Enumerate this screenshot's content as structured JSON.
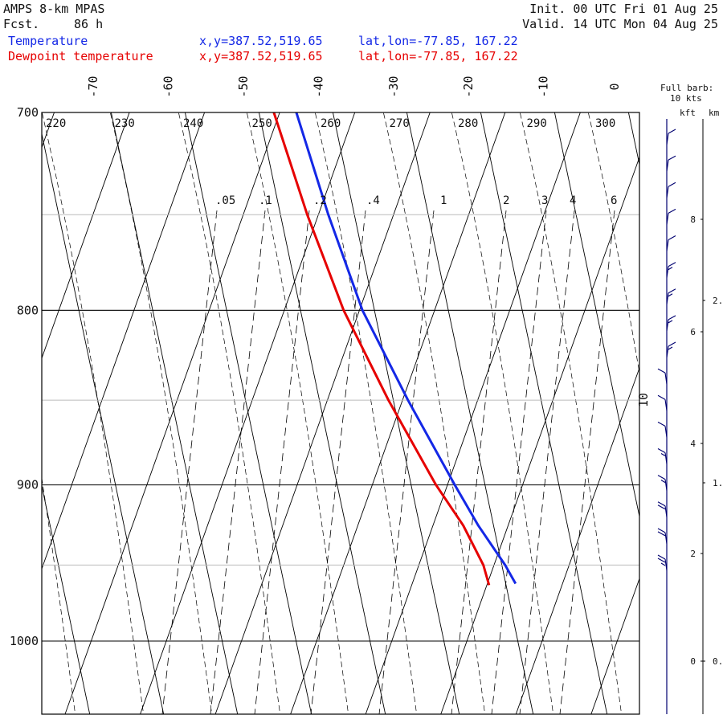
{
  "header": {
    "model": "AMPS 8-km MPAS",
    "fcst_label": "Fcst.",
    "fcst_value": "86 h",
    "init": "Init. 00 UTC Fri 01 Aug 25",
    "valid": "Valid. 14 UTC Mon 04 Aug 25"
  },
  "legend": [
    {
      "label": "Temperature",
      "xy": "x,y=387.52,519.65",
      "latlon": "lat,lon=-77.85, 167.22",
      "color": "#1428e6"
    },
    {
      "label": "Dewpoint temperature",
      "xy": "x,y=387.52,519.65",
      "latlon": "lat,lon=-77.85, 167.22",
      "color": "#e60000"
    }
  ],
  "chart_data": {
    "type": "line",
    "diagram": "skew-T log-P",
    "pressure_axis": {
      "range_hpa": [
        1040,
        700
      ],
      "ticks": [
        700,
        800,
        900,
        1000
      ],
      "log_scale": true
    },
    "temperature_axis": {
      "unit": "°C",
      "ticks": [
        -70,
        -60,
        -50,
        -40,
        -30,
        -20,
        -10,
        0
      ]
    },
    "isentrope_labels": [
      "220",
      "230",
      "240",
      "250",
      "260",
      "270",
      "280",
      "290",
      "300"
    ],
    "mixing_ratio_labels": [
      ".05",
      ".1",
      ".2",
      ".4",
      "1",
      "2",
      "3",
      "4",
      "6"
    ],
    "isobars_hpa": [
      700,
      800,
      900,
      1000
    ],
    "thin_isobars_hpa": [
      750,
      850,
      950
    ],
    "series": [
      {
        "name": "Temperature",
        "color": "#1428e6",
        "points": [
          {
            "p": 700,
            "t": -17.6
          },
          {
            "p": 750,
            "t": -18.2
          },
          {
            "p": 800,
            "t": -18.2
          },
          {
            "p": 850,
            "t": -16.4
          },
          {
            "p": 900,
            "t": -14.2
          },
          {
            "p": 925,
            "t": -13.0
          },
          {
            "p": 950,
            "t": -11.3
          },
          {
            "p": 962,
            "t": -10.8
          }
        ]
      },
      {
        "name": "Dewpoint temperature",
        "color": "#e60000",
        "points": [
          {
            "p": 700,
            "t": -20.6
          },
          {
            "p": 750,
            "t": -21.0
          },
          {
            "p": 800,
            "t": -20.7
          },
          {
            "p": 850,
            "t": -19.0
          },
          {
            "p": 900,
            "t": -16.7
          },
          {
            "p": 925,
            "t": -15.0
          },
          {
            "p": 950,
            "t": -14.2
          },
          {
            "p": 963,
            "t": -14.4
          }
        ]
      }
    ],
    "wind": {
      "full_barb_label": "Full barb:",
      "full_barb_value": "10 kts",
      "kft_label": "kft",
      "km_label": "km",
      "kft_ticks": [
        "8",
        "6",
        "4",
        "2",
        "0"
      ],
      "km_ticks": [
        "2.",
        "1.",
        "0."
      ],
      "barb_color": "#000070",
      "speed_kts": [
        10,
        10,
        10,
        10,
        10,
        15,
        15,
        15,
        15,
        10,
        10,
        10,
        15,
        15,
        20,
        20,
        25
      ]
    },
    "side_label": "10"
  }
}
